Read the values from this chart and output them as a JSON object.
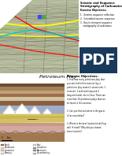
{
  "title_top": "Seismic and Sequence",
  "title_top2": "Stratigraphy of Carbonates",
  "exercise_objectives": "Exercise Objectives:",
  "obj1": "1.  Seismic sequence reflection",
  "obj2": "2.  Controlled seismic sequence",
  "obj3": "3.  Key to interpret sequence\n    stratigraphy of carbonates",
  "petroleum_play_title": "Petroleum Play",
  "exercise_objectives2": "Exercise Objectives:",
  "ex2_text": "1. Find how many petroleum play that\nyou can find in this exercise (eg. a\npetroleum play means 1 source rock, 1\nreservoir, 1 seal) and map and 4\ndiagram/model, etc in Class. There can\nmore than 10 petroleum plays that can\nbe found in this exercise.\n\n2. Can you find out where is the gas or\noil accumulation?\n\n3. Where is the best location for drilling\nwell (if exist)? Why did you choose\nthese location?",
  "legend_items_col1": [
    "Shale",
    "Sandstone",
    "Limestone",
    "Porosity"
  ],
  "legend_items_col2": [
    "Seal",
    "Lacustrine",
    "Basement",
    "Unconformity"
  ],
  "legend_colors_col1": [
    "#8B6040",
    "#E8D898",
    "#C8C8C8",
    "#E8E0C0"
  ],
  "legend_colors_col2": [
    "#D8D8D8",
    "#7090B8",
    "#A0785A",
    "#C8C8C8"
  ],
  "bg_color": "#FFFFFF",
  "seismic_bg": "#A8B898",
  "pdf_text": "PDF",
  "pdf_bg": "#1a3a5c"
}
